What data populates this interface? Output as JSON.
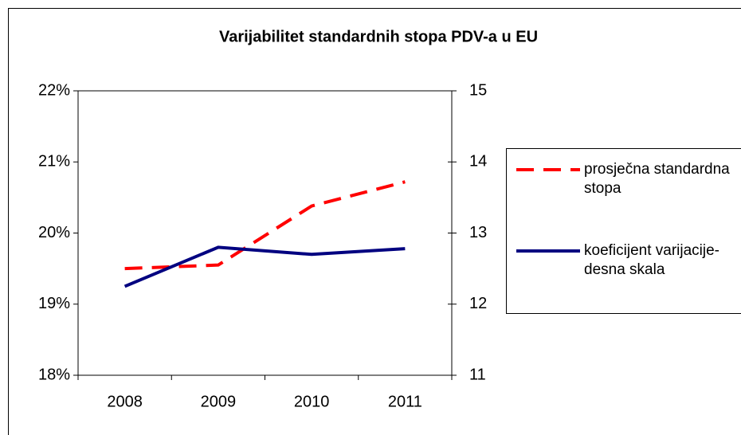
{
  "chart_data": {
    "type": "line",
    "title": "Varijabilitet standardnih stopa PDV-a u EU",
    "categories": [
      "2008",
      "2009",
      "2010",
      "2011"
    ],
    "series": [
      {
        "name": "prosječna standardna stopa",
        "color": "#ff0000",
        "dash": true,
        "values": [
          19.5,
          19.55,
          20.38,
          20.72
        ]
      },
      {
        "name": "koeficijent varijacije- desna skala",
        "color": "#000080",
        "axis": "y2",
        "values": [
          12.25,
          12.8,
          12.7,
          12.78
        ]
      }
    ],
    "ylim": [
      18,
      22
    ],
    "yticks": [
      {
        "value": 18,
        "label": "18%"
      },
      {
        "value": 19,
        "label": "19%"
      },
      {
        "value": 20,
        "label": "20%"
      },
      {
        "value": 21,
        "label": "21%"
      },
      {
        "value": 22,
        "label": "22%"
      }
    ],
    "y2lim": [
      11,
      15
    ],
    "y2ticks": [
      11,
      12,
      13,
      14,
      15
    ],
    "grid": false,
    "legend": "right"
  }
}
